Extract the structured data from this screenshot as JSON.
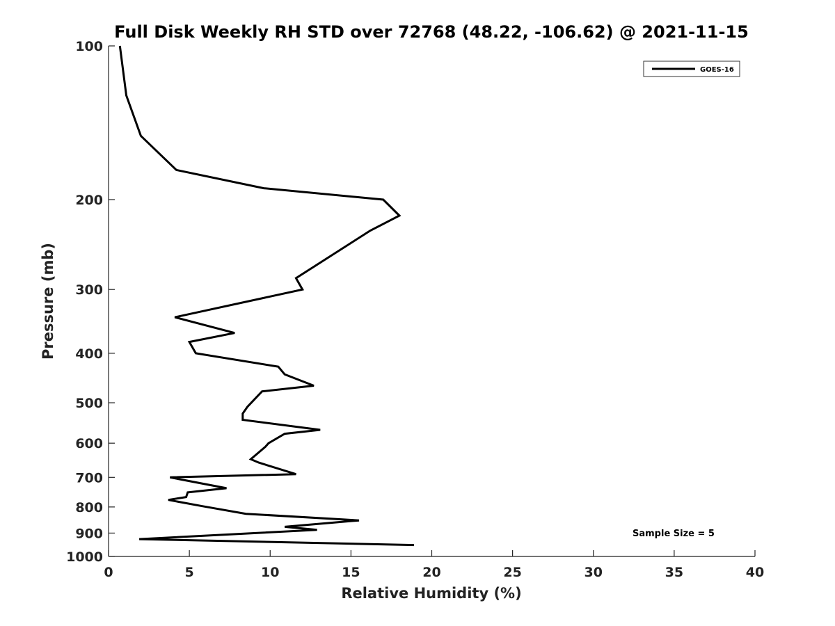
{
  "chart_data": {
    "type": "line",
    "title": "Full Disk Weekly RH STD over 72768 (48.22, -106.62) @ 2021-11-15",
    "xlabel": "Relative Humidity (%)",
    "ylabel": "Pressure (mb)",
    "xlim": [
      0,
      40
    ],
    "ylim": [
      1000,
      100
    ],
    "yscale": "log",
    "xticks": [
      0,
      5,
      10,
      15,
      20,
      25,
      30,
      35,
      40
    ],
    "yticks": [
      100,
      200,
      300,
      400,
      500,
      600,
      700,
      800,
      900,
      1000
    ],
    "legend": {
      "position": "top-right",
      "entries": [
        "GOES-16"
      ]
    },
    "annotation": "Sample Size = 5",
    "series": [
      {
        "name": "GOES-16",
        "color": "#000000",
        "points": [
          {
            "x": 0.7,
            "p": 100
          },
          {
            "x": 1.1,
            "p": 125
          },
          {
            "x": 2.0,
            "p": 150
          },
          {
            "x": 4.2,
            "p": 175
          },
          {
            "x": 9.6,
            "p": 190
          },
          {
            "x": 17.0,
            "p": 200
          },
          {
            "x": 18.0,
            "p": 215
          },
          {
            "x": 16.2,
            "p": 230
          },
          {
            "x": 11.6,
            "p": 285
          },
          {
            "x": 12.0,
            "p": 300
          },
          {
            "x": 4.1,
            "p": 340
          },
          {
            "x": 7.8,
            "p": 365
          },
          {
            "x": 5.0,
            "p": 380
          },
          {
            "x": 5.4,
            "p": 400
          },
          {
            "x": 10.5,
            "p": 425
          },
          {
            "x": 10.9,
            "p": 440
          },
          {
            "x": 12.7,
            "p": 463
          },
          {
            "x": 9.5,
            "p": 475
          },
          {
            "x": 8.6,
            "p": 509
          },
          {
            "x": 8.3,
            "p": 525
          },
          {
            "x": 8.3,
            "p": 540
          },
          {
            "x": 13.1,
            "p": 565
          },
          {
            "x": 10.9,
            "p": 575
          },
          {
            "x": 9.9,
            "p": 600
          },
          {
            "x": 9.7,
            "p": 610
          },
          {
            "x": 8.8,
            "p": 645
          },
          {
            "x": 9.3,
            "p": 655
          },
          {
            "x": 11.6,
            "p": 690
          },
          {
            "x": 3.8,
            "p": 700
          },
          {
            "x": 7.3,
            "p": 735
          },
          {
            "x": 4.9,
            "p": 749
          },
          {
            "x": 4.8,
            "p": 765
          },
          {
            "x": 3.7,
            "p": 775
          },
          {
            "x": 5.8,
            "p": 797
          },
          {
            "x": 8.5,
            "p": 825
          },
          {
            "x": 15.5,
            "p": 850
          },
          {
            "x": 10.9,
            "p": 875
          },
          {
            "x": 12.9,
            "p": 887
          },
          {
            "x": 1.9,
            "p": 925
          },
          {
            "x": 18.9,
            "p": 950
          }
        ]
      }
    ]
  }
}
